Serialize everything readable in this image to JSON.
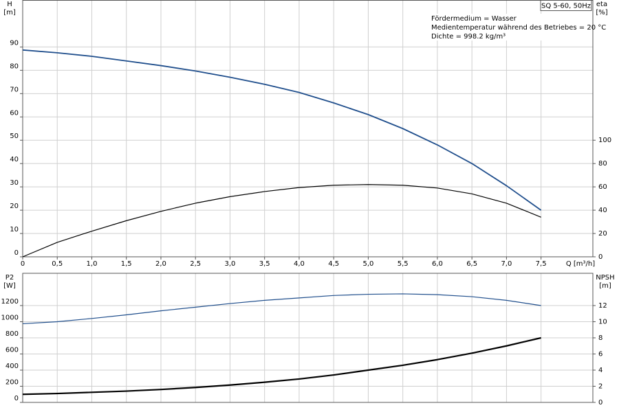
{
  "chart_data": [
    {
      "type": "line",
      "title": "SQ 5-60, 50Hz",
      "notes": [
        "Fördermedium = Wasser",
        "Medientemperatur während des Betriebes = 20 °C",
        "Dichte = 998.2 kg/m³"
      ],
      "y_label": "H",
      "y_unit": "[m]",
      "y2_label": "eta",
      "y2_unit": "[%]",
      "x_label": "Q [m³/h]",
      "x": [
        0,
        0.5,
        1.0,
        1.5,
        2.0,
        2.5,
        3.0,
        3.5,
        4.0,
        4.5,
        5.0,
        5.5,
        6.0,
        6.5,
        7.0,
        7.5
      ],
      "series": [
        {
          "name": "H",
          "color": "#1f4e8c",
          "values": [
            88.7,
            87.5,
            86,
            84,
            82,
            79.7,
            77,
            74,
            70.5,
            66,
            61,
            55,
            48,
            40,
            30.5,
            20
          ]
        },
        {
          "name": "eta",
          "color": "#000000",
          "axis": "y2",
          "values": [
            0,
            12.4,
            22,
            31,
            39,
            46,
            51.6,
            56,
            59.4,
            61.4,
            62,
            61.4,
            59,
            54,
            46,
            34
          ]
        }
      ],
      "xlim": [
        0,
        8.25
      ],
      "xticks": [
        0,
        {
          "value": 0.5,
          "label": "0,5"
        },
        {
          "value": 1.0,
          "label": "1,0"
        },
        {
          "value": 1.5,
          "label": "1,5"
        },
        {
          "value": 2.0,
          "label": "2,0"
        },
        {
          "value": 2.5,
          "label": "2,5"
        },
        {
          "value": 3.0,
          "label": "3,0"
        },
        {
          "value": 3.5,
          "label": "3,5"
        },
        {
          "value": 4.0,
          "label": "4,0"
        },
        {
          "value": 4.5,
          "label": "4,5"
        },
        {
          "value": 5.0,
          "label": "5,0"
        },
        {
          "value": 5.5,
          "label": "5,5"
        },
        {
          "value": 6.0,
          "label": "6,0"
        },
        {
          "value": 6.5,
          "label": "6,5"
        },
        {
          "value": 7.0,
          "label": "7,0"
        },
        {
          "value": 7.5,
          "label": "7,5"
        }
      ],
      "ylim": [
        0,
        110
      ],
      "yticks": [
        0,
        10,
        20,
        30,
        40,
        50,
        60,
        70,
        80,
        90
      ],
      "y2lim": [
        0,
        220
      ],
      "y2ticks": [
        0,
        20,
        40,
        60,
        80,
        100
      ],
      "grid": true
    },
    {
      "type": "line",
      "y_label": "P2",
      "y_unit": "[W]",
      "y2_label": "NPSH",
      "y2_unit": "[m]",
      "x": [
        0,
        0.5,
        1.0,
        1.5,
        2.0,
        2.5,
        3.0,
        3.5,
        4.0,
        4.5,
        5.0,
        5.5,
        6.0,
        6.5,
        7.0,
        7.5
      ],
      "series": [
        {
          "name": "P2",
          "color": "#1f4e8c",
          "values": [
            975,
            1000,
            1040,
            1085,
            1135,
            1180,
            1225,
            1265,
            1295,
            1325,
            1340,
            1345,
            1335,
            1310,
            1265,
            1200
          ]
        },
        {
          "name": "NPSH",
          "color": "#000000",
          "axis": "y2",
          "values": [
            1.0,
            1.1,
            1.25,
            1.4,
            1.6,
            1.85,
            2.15,
            2.5,
            2.9,
            3.4,
            4.0,
            4.6,
            5.3,
            6.1,
            7.0,
            8.0
          ]
        }
      ],
      "xlim": [
        0,
        8.25
      ],
      "ylim": [
        0,
        1600
      ],
      "yticks": [
        0,
        200,
        400,
        600,
        800,
        1000,
        1200
      ],
      "y2lim": [
        0,
        16
      ],
      "y2ticks": [
        0,
        2,
        4,
        6,
        8,
        10,
        12
      ],
      "grid": true
    }
  ]
}
